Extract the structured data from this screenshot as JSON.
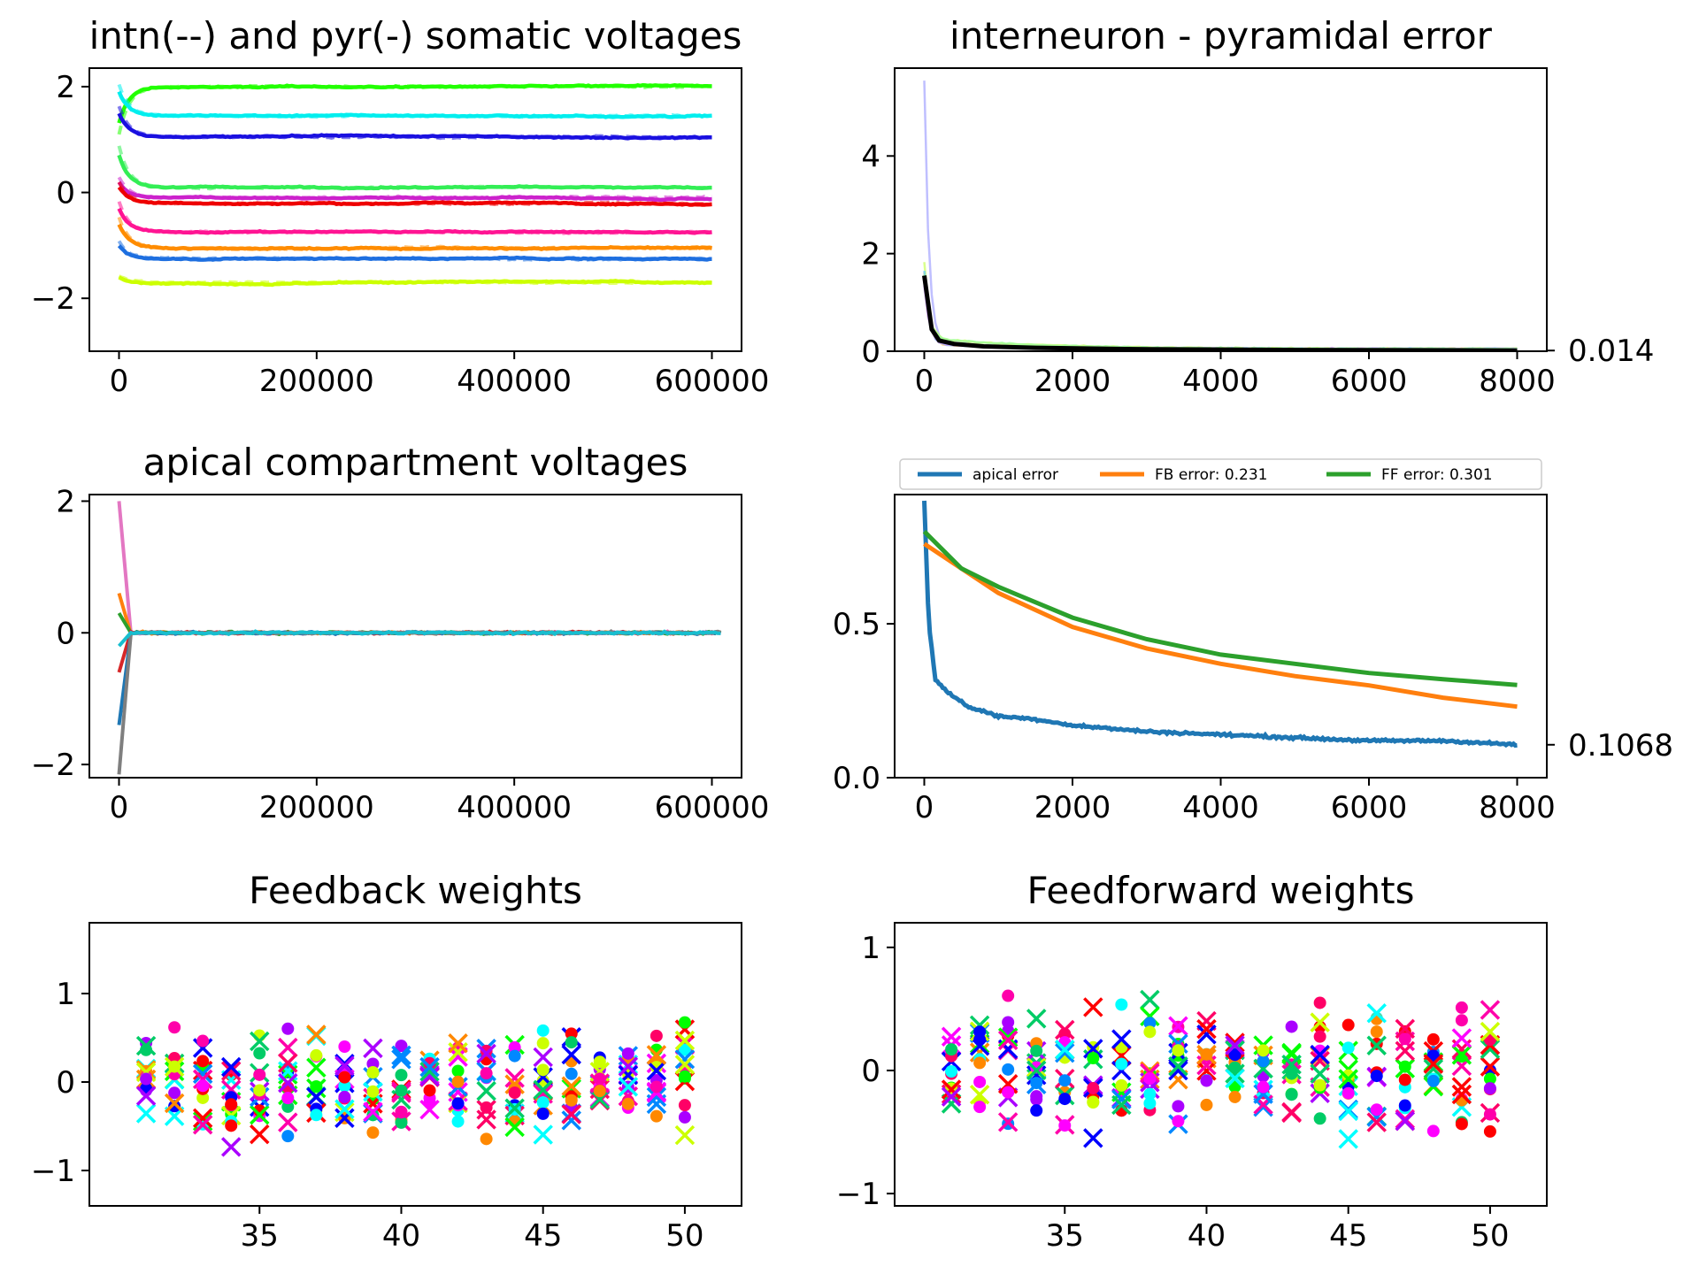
{
  "colors": {
    "palette": [
      "#00ff00",
      "#00ffff",
      "#0000ff",
      "#ff0000",
      "#ff00aa",
      "#ff00ff",
      "#ff8800",
      "#aa00ff",
      "#ccff00",
      "#0088ff",
      "#00cc66",
      "#ff0066",
      "#1f77b4",
      "#ff7f0e",
      "#2ca02c"
    ],
    "black": "#000000"
  },
  "chart_data": [
    {
      "id": "somatic",
      "type": "line",
      "title": "intn(--) and pyr(-) somatic voltages",
      "xlim": [
        -30000,
        630000
      ],
      "ylim": [
        -3,
        2.35
      ],
      "xticks": [
        0,
        200000,
        400000,
        600000
      ],
      "xtick_labels": [
        "0",
        "200000",
        "400000",
        "600000"
      ],
      "yticks": [
        -2,
        0,
        2
      ],
      "ytick_labels": [
        "−2",
        "0",
        "2"
      ],
      "x_end": 600000,
      "series": [
        {
          "color": "#22ff00",
          "start": 1.3,
          "level": 2.0
        },
        {
          "color": "#00eeee",
          "start": 1.9,
          "level": 1.45
        },
        {
          "color": "#1a10e0",
          "start": 1.5,
          "level": 1.05
        },
        {
          "color": "#33ee55",
          "start": 0.7,
          "level": 0.1
        },
        {
          "color": "#cc22cc",
          "start": 0.2,
          "level": -0.1
        },
        {
          "color": "#ee0000",
          "start": 0.1,
          "level": -0.2
        },
        {
          "color": "#ff1493",
          "start": -0.3,
          "level": -0.75
        },
        {
          "color": "#ff8c00",
          "start": -0.6,
          "level": -1.05
        },
        {
          "color": "#1e6fe0",
          "start": -1.0,
          "level": -1.25
        },
        {
          "color": "#ccff00",
          "start": -1.6,
          "level": -1.7
        }
      ]
    },
    {
      "id": "intn_error",
      "type": "line",
      "title": "interneuron - pyramidal error",
      "xlim": [
        -400,
        8400
      ],
      "ylim": [
        0,
        5.8
      ],
      "xticks": [
        0,
        2000,
        4000,
        6000,
        8000
      ],
      "xtick_labels": [
        "0",
        "2000",
        "4000",
        "6000",
        "8000"
      ],
      "yticks": [
        0,
        2,
        4
      ],
      "ytick_labels": [
        "0",
        "2",
        "4"
      ],
      "right_label": "0.014",
      "mean_series": {
        "x": [
          0,
          100,
          200,
          400,
          800,
          1500,
          3000,
          5000,
          8000
        ],
        "y": [
          1.55,
          0.45,
          0.22,
          0.15,
          0.1,
          0.07,
          0.04,
          0.025,
          0.014
        ]
      }
    },
    {
      "id": "apical",
      "type": "line",
      "title": "apical compartment voltages",
      "xlim": [
        -30000,
        630000
      ],
      "ylim": [
        -2.2,
        2.1
      ],
      "xticks": [
        0,
        200000,
        400000,
        600000
      ],
      "xtick_labels": [
        "0",
        "200000",
        "400000",
        "600000"
      ],
      "yticks": [
        -2,
        0,
        2
      ],
      "ytick_labels": [
        "−2",
        "0",
        "2"
      ],
      "start_values": [
        2.0,
        0.6,
        0.3,
        -0.6,
        -1.4,
        -2.15,
        -0.2
      ]
    },
    {
      "id": "errors",
      "type": "line",
      "title": "",
      "xlim": [
        -400,
        8400
      ],
      "ylim": [
        0,
        0.92
      ],
      "xticks": [
        0,
        2000,
        4000,
        6000,
        8000
      ],
      "xtick_labels": [
        "0",
        "2000",
        "4000",
        "6000",
        "8000"
      ],
      "yticks": [
        0,
        0.5
      ],
      "ytick_labels": [
        "0.0",
        "0.5"
      ],
      "right_label": "0.1068",
      "legend": [
        "apical error",
        "FB error: 0.231",
        "FF error: 0.301"
      ],
      "legend_placement": "top",
      "series": [
        {
          "name": "apical error",
          "color": "#1f77b4",
          "x": [
            0,
            60,
            150,
            300,
            600,
            1000,
            1500,
            2000,
            3000,
            4000,
            5000,
            6000,
            7000,
            8000
          ],
          "y": [
            0.9,
            0.5,
            0.32,
            0.28,
            0.23,
            0.2,
            0.19,
            0.17,
            0.15,
            0.14,
            0.13,
            0.12,
            0.12,
            0.107
          ]
        },
        {
          "name": "FB error: 0.231",
          "color": "#ff7f0e",
          "x": [
            0,
            500,
            1000,
            2000,
            3000,
            4000,
            5000,
            6000,
            7000,
            8000
          ],
          "y": [
            0.76,
            0.68,
            0.6,
            0.49,
            0.42,
            0.37,
            0.33,
            0.3,
            0.26,
            0.231
          ]
        },
        {
          "name": "FF error: 0.301",
          "color": "#2ca02c",
          "x": [
            0,
            500,
            1000,
            2000,
            3000,
            4000,
            5000,
            6000,
            7000,
            8000
          ],
          "y": [
            0.8,
            0.68,
            0.62,
            0.52,
            0.45,
            0.4,
            0.37,
            0.34,
            0.32,
            0.301
          ]
        }
      ]
    },
    {
      "id": "fb_weights",
      "type": "scatter",
      "title": "Feedback weights",
      "xlim": [
        29,
        52
      ],
      "ylim": [
        -1.4,
        1.8
      ],
      "xticks": [
        35,
        40,
        45,
        50
      ],
      "xtick_labels": [
        "35",
        "40",
        "45",
        "50"
      ],
      "yticks": [
        -1,
        0,
        1
      ],
      "ytick_labels": [
        "−1",
        "0",
        "1"
      ],
      "x_range": [
        31,
        50
      ],
      "markers": [
        "x",
        "o"
      ]
    },
    {
      "id": "ff_weights",
      "type": "scatter",
      "title": "Feedforward weights",
      "xlim": [
        29,
        52
      ],
      "ylim": [
        -1.1,
        1.2
      ],
      "xticks": [
        35,
        40,
        45,
        50
      ],
      "xtick_labels": [
        "35",
        "40",
        "45",
        "50"
      ],
      "yticks": [
        -1,
        0,
        1
      ],
      "ytick_labels": [
        "−1",
        "0",
        "1"
      ],
      "x_range": [
        31,
        50
      ],
      "markers": [
        "x",
        "o"
      ]
    }
  ]
}
